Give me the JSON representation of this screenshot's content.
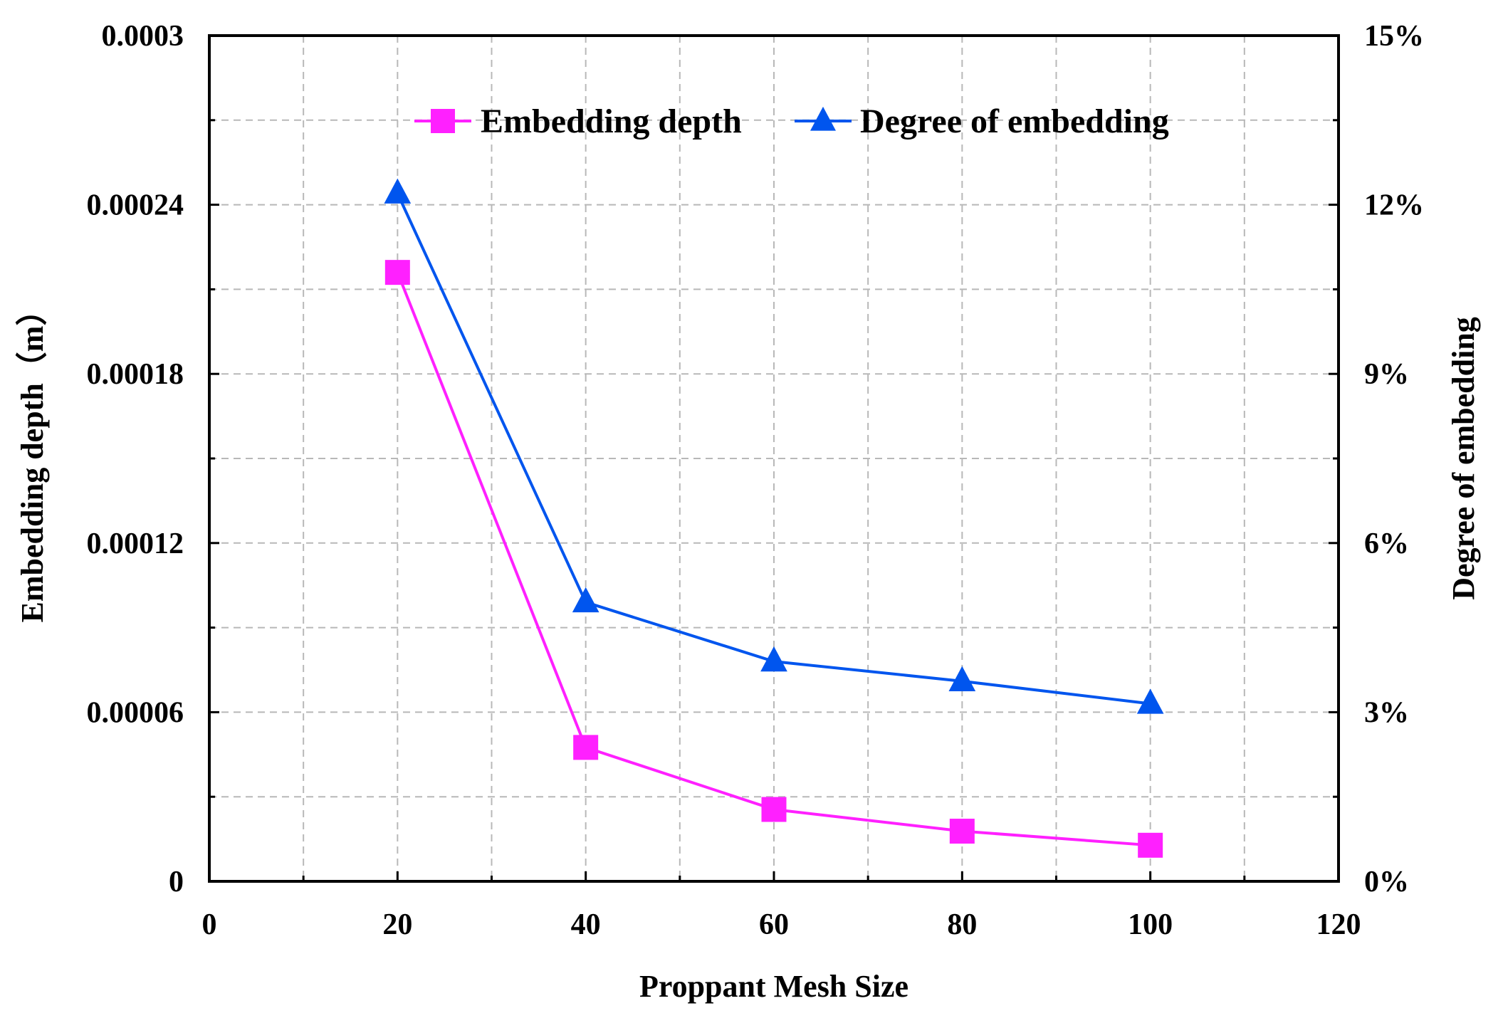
{
  "chart_data": {
    "type": "line",
    "title": "",
    "xlabel": "Proppant Mesh Size",
    "ylabel_left": "Embedding depth（m）",
    "ylabel_right": "Degree of embedding",
    "xlim": [
      0,
      120
    ],
    "ylim_left": [
      0,
      0.0003
    ],
    "ylim_right": [
      0,
      15
    ],
    "x_ticks": [
      0,
      20,
      40,
      60,
      80,
      100,
      120
    ],
    "x_tick_labels": [
      "0",
      "20",
      "40",
      "60",
      "80",
      "100",
      "120"
    ],
    "y_left_ticks": [
      0,
      6e-05,
      0.00012,
      0.00018,
      0.00024,
      0.0003
    ],
    "y_left_tick_labels": [
      "0",
      "0.00006",
      "0.00012",
      "0.00018",
      "0.00024",
      "0.0003"
    ],
    "y_right_ticks": [
      0,
      3,
      6,
      9,
      12,
      15
    ],
    "y_right_tick_labels": [
      "0%",
      "3%",
      "6%",
      "9%",
      "12%",
      "15%"
    ],
    "grid": true,
    "legend_position": "top-center",
    "series": [
      {
        "name": "Embedding depth",
        "axis": "left",
        "color": "#ff20ff",
        "marker": "square",
        "x": [
          20,
          40,
          60,
          80,
          100
        ],
        "values": [
          0.000216,
          4.75e-05,
          2.55e-05,
          1.78e-05,
          1.28e-05
        ]
      },
      {
        "name": "Degree of embedding",
        "axis": "right",
        "color": "#0055ee",
        "marker": "triangle",
        "x": [
          20,
          40,
          60,
          80,
          100
        ],
        "values": [
          12.2,
          4.95,
          3.9,
          3.55,
          3.15
        ]
      }
    ]
  }
}
